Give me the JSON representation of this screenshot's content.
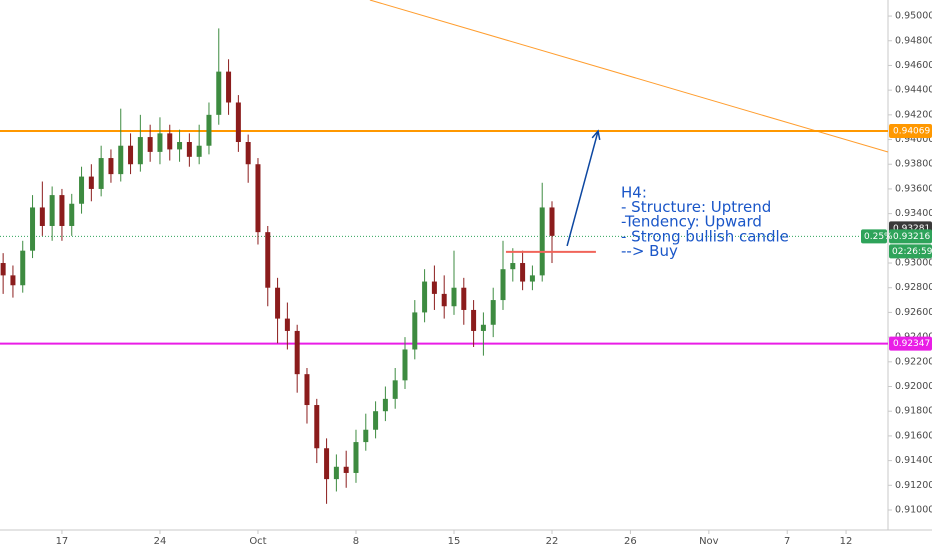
{
  "chart_data": {
    "type": "candlestick",
    "x": [
      -3.0,
      -2.5,
      -2.0,
      -1.5,
      -1.0,
      -0.5,
      0.0,
      0.5,
      1.0,
      1.5,
      2.0,
      2.5,
      3.0,
      3.5,
      4.0,
      4.5,
      5.0,
      5.5,
      6.0,
      6.5,
      7.0,
      7.5,
      8.0,
      8.5,
      9.0,
      9.5,
      10.0,
      10.5,
      11.0,
      11.5,
      12.0,
      12.5,
      13.0,
      13.5,
      14.0,
      14.5,
      15.0,
      15.5,
      16.0,
      16.5,
      17.0,
      17.5,
      18.0,
      18.5,
      19.0,
      19.5,
      20.0,
      20.5,
      21.0,
      21.5,
      22.0,
      22.5,
      23.0,
      23.5,
      24.0,
      24.5,
      25.0
    ],
    "open": [
      0.93,
      0.929,
      0.9282,
      0.931,
      0.9345,
      0.933,
      0.9355,
      0.933,
      0.9348,
      0.937,
      0.936,
      0.9385,
      0.9372,
      0.9395,
      0.938,
      0.9402,
      0.939,
      0.9405,
      0.9392,
      0.9398,
      0.9386,
      0.9395,
      0.942,
      0.9455,
      0.943,
      0.9398,
      0.938,
      0.9325,
      0.928,
      0.9255,
      0.9245,
      0.921,
      0.9185,
      0.915,
      0.9125,
      0.9135,
      0.913,
      0.9155,
      0.9165,
      0.918,
      0.919,
      0.9205,
      0.923,
      0.926,
      0.9285,
      0.9275,
      0.9265,
      0.928,
      0.9262,
      0.9245,
      0.925,
      0.927,
      0.9295,
      0.93,
      0.9285,
      0.929,
      0.9345
    ],
    "high": [
      0.9308,
      0.9298,
      0.9318,
      0.9355,
      0.9366,
      0.9362,
      0.936,
      0.9356,
      0.9378,
      0.938,
      0.9395,
      0.9392,
      0.9425,
      0.9405,
      0.942,
      0.9412,
      0.9418,
      0.9412,
      0.9408,
      0.9405,
      0.9412,
      0.943,
      0.949,
      0.9465,
      0.9436,
      0.9404,
      0.9385,
      0.933,
      0.9288,
      0.9268,
      0.925,
      0.9215,
      0.919,
      0.9158,
      0.9145,
      0.9148,
      0.9165,
      0.9178,
      0.9188,
      0.92,
      0.9215,
      0.924,
      0.927,
      0.9295,
      0.9298,
      0.929,
      0.931,
      0.9288,
      0.927,
      0.926,
      0.928,
      0.9318,
      0.9312,
      0.931,
      0.9298,
      0.9365,
      0.935
    ],
    "low": [
      0.9275,
      0.9272,
      0.9276,
      0.9304,
      0.9322,
      0.9318,
      0.9318,
      0.9322,
      0.934,
      0.935,
      0.9354,
      0.9365,
      0.9366,
      0.9372,
      0.9374,
      0.9382,
      0.938,
      0.9383,
      0.9382,
      0.9378,
      0.938,
      0.9388,
      0.9412,
      0.942,
      0.939,
      0.9365,
      0.9315,
      0.9265,
      0.9235,
      0.923,
      0.9195,
      0.917,
      0.9138,
      0.9105,
      0.9115,
      0.9118,
      0.9122,
      0.9148,
      0.9158,
      0.9172,
      0.9182,
      0.9198,
      0.9222,
      0.9252,
      0.9262,
      0.9255,
      0.9258,
      0.925,
      0.9232,
      0.9225,
      0.924,
      0.9262,
      0.9285,
      0.9278,
      0.9278,
      0.9285,
      0.93
    ],
    "close": [
      0.929,
      0.9282,
      0.931,
      0.9345,
      0.933,
      0.9355,
      0.933,
      0.9348,
      0.937,
      0.936,
      0.9385,
      0.9372,
      0.9395,
      0.938,
      0.9402,
      0.939,
      0.9405,
      0.9392,
      0.9398,
      0.9386,
      0.9395,
      0.942,
      0.9455,
      0.943,
      0.9398,
      0.938,
      0.9325,
      0.928,
      0.9255,
      0.9245,
      0.921,
      0.9185,
      0.915,
      0.9125,
      0.9135,
      0.913,
      0.9155,
      0.9165,
      0.918,
      0.919,
      0.9205,
      0.923,
      0.926,
      0.9285,
      0.9275,
      0.9265,
      0.928,
      0.9262,
      0.9245,
      0.925,
      0.927,
      0.9295,
      0.93,
      0.9285,
      0.929,
      0.9345,
      0.9322
    ],
    "up_color": "#3d8b40",
    "down_color": "#8b1c1c",
    "xlim": [
      -3.16,
      42.14
    ],
    "ylim": [
      0.90838,
      0.9513
    ],
    "xticks": [
      {
        "value": 0,
        "label": "17"
      },
      {
        "value": 5,
        "label": "24"
      },
      {
        "value": 10,
        "label": "Oct"
      },
      {
        "value": 15,
        "label": "8"
      },
      {
        "value": 20,
        "label": "15"
      },
      {
        "value": 25,
        "label": "22"
      },
      {
        "value": 29,
        "label": "26"
      },
      {
        "value": 33,
        "label": "Nov"
      },
      {
        "value": 37,
        "label": "7"
      },
      {
        "value": 40,
        "label": "12"
      }
    ],
    "yticks": [
      {
        "value": 0.95,
        "label": "0.95000"
      },
      {
        "value": 0.948,
        "label": "0.94800"
      },
      {
        "value": 0.946,
        "label": "0.94600"
      },
      {
        "value": 0.944,
        "label": "0.94400"
      },
      {
        "value": 0.942,
        "label": "0.94200"
      },
      {
        "value": 0.94,
        "label": "0.94000"
      },
      {
        "value": 0.938,
        "label": "0.93800"
      },
      {
        "value": 0.936,
        "label": "0.93600"
      },
      {
        "value": 0.934,
        "label": "0.93400"
      },
      {
        "value": 0.93,
        "label": "0.93000"
      },
      {
        "value": 0.928,
        "label": "0.92800"
      },
      {
        "value": 0.926,
        "label": "0.92600"
      },
      {
        "value": 0.924,
        "label": "0.92400"
      },
      {
        "value": 0.922,
        "label": "0.92200"
      },
      {
        "value": 0.92,
        "label": "0.92000"
      },
      {
        "value": 0.918,
        "label": "0.91800"
      },
      {
        "value": 0.916,
        "label": "0.91600"
      },
      {
        "value": 0.914,
        "label": "0.91400"
      },
      {
        "value": 0.912,
        "label": "0.91200"
      },
      {
        "value": 0.91,
        "label": "0.91000"
      }
    ],
    "levels": [
      {
        "value": 0.94069,
        "label": "0.94069",
        "color": "#ff9800"
      },
      {
        "value": 0.92347,
        "label": "0.92347",
        "color": "#e91ee6"
      }
    ],
    "high_marker": {
      "value": 0.93281,
      "label": "0.93281",
      "color": "#3a3a3a"
    },
    "last_price": {
      "value": 0.93216,
      "label": "0.93216",
      "change": "0.25%",
      "countdown": "02:26:59",
      "color": "#2ea35a"
    },
    "trendline": {
      "x": [
        15.71,
        42.14
      ],
      "y": [
        0.9513,
        0.93899
      ],
      "color": "#ff9d2e"
    },
    "support_segment": {
      "x": [
        22.65,
        27.24
      ],
      "y": 0.9309,
      "color": "#f0645a"
    },
    "arrow": {
      "x": [
        25.77,
        27.35
      ],
      "y": [
        0.93138,
        0.94069
      ],
      "color": "#0d47a1"
    },
    "note": [
      "H4:",
      "- Structure: Uptrend",
      "-Tendency:  Upward",
      "- Strong bullish candle",
      "--> Buy"
    ],
    "note_color": "#1a56c8"
  }
}
